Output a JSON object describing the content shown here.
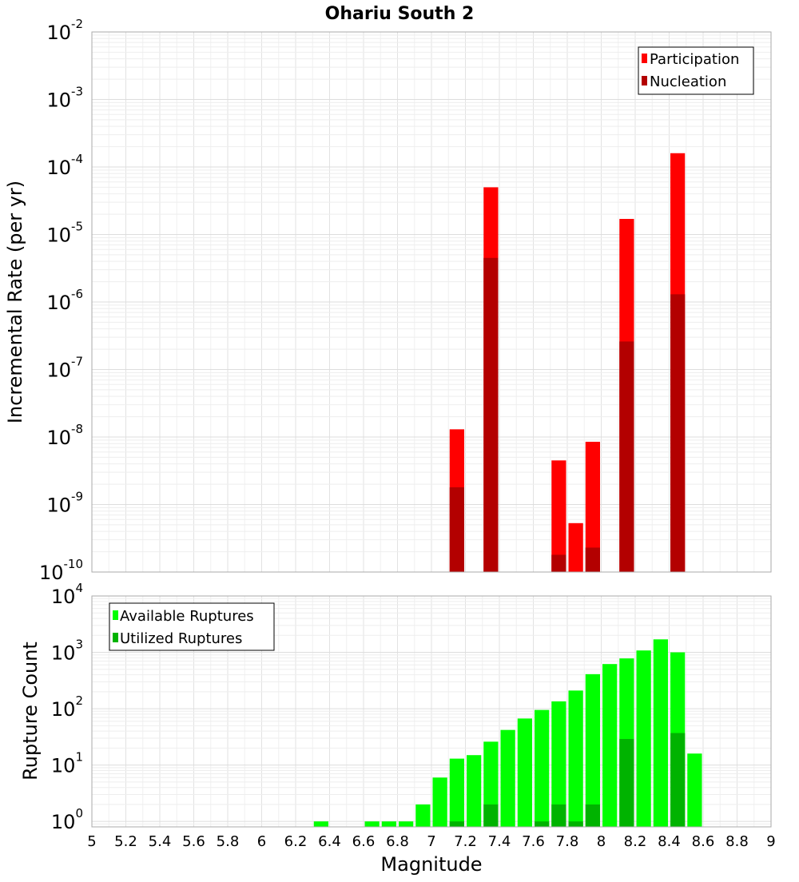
{
  "chart_data": [
    {
      "type": "bar",
      "title": "Ohariu South 2",
      "ylabel": "Incremental Rate (per yr)",
      "xlabel": "",
      "yscale": "log",
      "ylim": [
        1e-10,
        0.01
      ],
      "xlim": [
        5,
        9
      ],
      "ytick_labels": [
        {
          "base": "10",
          "exp": "-10"
        },
        {
          "base": "10",
          "exp": "-9"
        },
        {
          "base": "10",
          "exp": "-8"
        },
        {
          "base": "10",
          "exp": "-7"
        },
        {
          "base": "10",
          "exp": "-6"
        },
        {
          "base": "10",
          "exp": "-5"
        },
        {
          "base": "10",
          "exp": "-4"
        },
        {
          "base": "10",
          "exp": "-3"
        },
        {
          "base": "10",
          "exp": "-2"
        }
      ],
      "legend_position": "top-right",
      "series": [
        {
          "name": "Participation",
          "color": "#ff0000",
          "points": [
            {
              "x": 7.15,
              "y": 1.3e-08
            },
            {
              "x": 7.35,
              "y": 5e-05
            },
            {
              "x": 7.75,
              "y": 4.5e-09
            },
            {
              "x": 7.85,
              "y": 5.3e-10
            },
            {
              "x": 7.95,
              "y": 8.5e-09
            },
            {
              "x": 8.15,
              "y": 1.7e-05
            },
            {
              "x": 8.45,
              "y": 0.00016
            }
          ]
        },
        {
          "name": "Nucleation",
          "color": "#b30000",
          "points": [
            {
              "x": 7.15,
              "y": 1.8e-09
            },
            {
              "x": 7.35,
              "y": 4.5e-06
            },
            {
              "x": 7.75,
              "y": 1.8e-10
            },
            {
              "x": 7.95,
              "y": 2.3e-10
            },
            {
              "x": 8.15,
              "y": 2.6e-07
            },
            {
              "x": 8.45,
              "y": 1.3e-06
            }
          ]
        }
      ]
    },
    {
      "type": "bar",
      "title": "",
      "ylabel": "Rupture Count",
      "xlabel": "Magnitude",
      "yscale": "log",
      "ylim": [
        0.8,
        10000
      ],
      "xlim": [
        5,
        9
      ],
      "xticks": [
        "5",
        "5.2",
        "5.4",
        "5.6",
        "5.8",
        "6",
        "6.2",
        "6.4",
        "6.6",
        "6.8",
        "7",
        "7.2",
        "7.4",
        "7.6",
        "7.8",
        "8",
        "8.2",
        "8.4",
        "8.6",
        "8.8",
        "9"
      ],
      "ytick_labels": [
        {
          "base": "10",
          "exp": "0"
        },
        {
          "base": "10",
          "exp": "1"
        },
        {
          "base": "10",
          "exp": "2"
        },
        {
          "base": "10",
          "exp": "3"
        },
        {
          "base": "10",
          "exp": "4"
        }
      ],
      "legend_position": "top-left",
      "series": [
        {
          "name": "Available Ruptures",
          "color": "#00ff00",
          "points": [
            {
              "x": 6.35,
              "y": 1
            },
            {
              "x": 6.65,
              "y": 1
            },
            {
              "x": 6.75,
              "y": 1
            },
            {
              "x": 6.85,
              "y": 1
            },
            {
              "x": 6.95,
              "y": 2
            },
            {
              "x": 7.05,
              "y": 6
            },
            {
              "x": 7.15,
              "y": 13
            },
            {
              "x": 7.25,
              "y": 15
            },
            {
              "x": 7.35,
              "y": 26
            },
            {
              "x": 7.45,
              "y": 42
            },
            {
              "x": 7.55,
              "y": 67
            },
            {
              "x": 7.65,
              "y": 95
            },
            {
              "x": 7.75,
              "y": 135
            },
            {
              "x": 7.85,
              "y": 210
            },
            {
              "x": 7.95,
              "y": 410
            },
            {
              "x": 8.05,
              "y": 620
            },
            {
              "x": 8.15,
              "y": 780
            },
            {
              "x": 8.25,
              "y": 1080
            },
            {
              "x": 8.35,
              "y": 1700
            },
            {
              "x": 8.45,
              "y": 1000
            },
            {
              "x": 8.55,
              "y": 16
            }
          ]
        },
        {
          "name": "Utilized Ruptures",
          "color": "#00b300",
          "points": [
            {
              "x": 7.15,
              "y": 1
            },
            {
              "x": 7.35,
              "y": 2
            },
            {
              "x": 7.65,
              "y": 1
            },
            {
              "x": 7.75,
              "y": 2
            },
            {
              "x": 7.85,
              "y": 1
            },
            {
              "x": 7.95,
              "y": 2
            },
            {
              "x": 8.15,
              "y": 29
            },
            {
              "x": 8.45,
              "y": 37
            }
          ]
        }
      ]
    }
  ]
}
